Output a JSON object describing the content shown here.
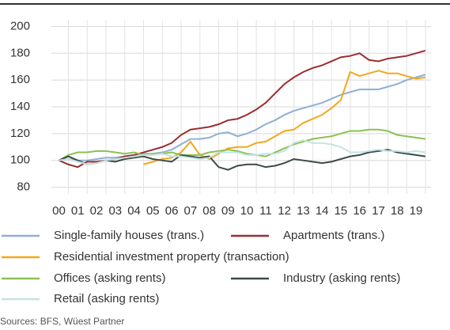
{
  "chart_data": {
    "type": "line",
    "source": "Sources: BFS, Wüest Partner",
    "x": [
      2000,
      2000.5,
      2001,
      2001.5,
      2002,
      2002.5,
      2003,
      2003.5,
      2004,
      2004.5,
      2005,
      2005.5,
      2006,
      2006.5,
      2007,
      2007.5,
      2008,
      2008.5,
      2009,
      2009.5,
      2010,
      2010.5,
      2011,
      2011.5,
      2012,
      2012.5,
      2013,
      2013.5,
      2014,
      2014.5,
      2015,
      2015.5,
      2016,
      2016.5,
      2017,
      2017.5,
      2018,
      2018.5,
      2019,
      2019.5
    ],
    "xlim": [
      1999.6,
      2019.8
    ],
    "xticks": [
      {
        "value": 2000,
        "label": "00"
      },
      {
        "value": 2001,
        "label": "01"
      },
      {
        "value": 2002,
        "label": "02"
      },
      {
        "value": 2003,
        "label": "03"
      },
      {
        "value": 2004,
        "label": "04"
      },
      {
        "value": 2005,
        "label": "05"
      },
      {
        "value": 2006,
        "label": "06"
      },
      {
        "value": 2007,
        "label": "07"
      },
      {
        "value": 2008,
        "label": "08"
      },
      {
        "value": 2009,
        "label": "09"
      },
      {
        "value": 2010,
        "label": "10"
      },
      {
        "value": 2011,
        "label": "11"
      },
      {
        "value": 2012,
        "label": "12"
      },
      {
        "value": 2013,
        "label": "13"
      },
      {
        "value": 2014,
        "label": "14"
      },
      {
        "value": 2015,
        "label": "15"
      },
      {
        "value": 2016,
        "label": "16"
      },
      {
        "value": 2017,
        "label": "17"
      },
      {
        "value": 2018,
        "label": "18"
      },
      {
        "value": 2019,
        "label": "19"
      }
    ],
    "ylim": [
      75,
      205
    ],
    "yticks": [
      80,
      100,
      120,
      140,
      160,
      180,
      200
    ],
    "grid": true,
    "series": [
      {
        "name": "Single-family houses (trans.)",
        "color": "#8fb0d3",
        "values": [
          100,
          101,
          100,
          100,
          101,
          102,
          102,
          103,
          104,
          105,
          105,
          106,
          108,
          112,
          116,
          116,
          117,
          120,
          121,
          118,
          120,
          123,
          127,
          130,
          134,
          137,
          139,
          141,
          143,
          146,
          149,
          151,
          153,
          153,
          153,
          155,
          157,
          160,
          162,
          164
        ]
      },
      {
        "name": "Apartments (trans.)",
        "color": "#9b2d30",
        "values": [
          100,
          97,
          95,
          99,
          99,
          100,
          101,
          103,
          104,
          106,
          108,
          110,
          113,
          119,
          123,
          124,
          125,
          127,
          130,
          131,
          134,
          138,
          143,
          150,
          157,
          162,
          166,
          169,
          171,
          174,
          177,
          178,
          180,
          175,
          174,
          176,
          177,
          178,
          180,
          182
        ]
      },
      {
        "name": "Residential investment property (transaction)",
        "color": "#f2a81d",
        "values": [
          null,
          null,
          null,
          null,
          null,
          null,
          null,
          null,
          null,
          97,
          99,
          101,
          102,
          106,
          114,
          104,
          101,
          105,
          109,
          110,
          110,
          113,
          114,
          118,
          122,
          123,
          128,
          131,
          134,
          139,
          145,
          166,
          163,
          165,
          167,
          165,
          165,
          163,
          161,
          162
        ]
      },
      {
        "name": "Offices (asking rents)",
        "color": "#8cc152",
        "values": [
          100,
          104,
          106,
          106,
          107,
          107,
          106,
          105,
          106,
          104,
          105,
          105,
          106,
          104,
          104,
          104,
          106,
          107,
          108,
          107,
          105,
          104,
          103,
          106,
          109,
          112,
          114,
          116,
          117,
          118,
          120,
          122,
          122,
          123,
          123,
          122,
          119,
          118,
          117,
          116
        ]
      },
      {
        "name": "Industry (asking rents)",
        "color": "#3c4a45",
        "values": [
          100,
          103,
          100,
          97,
          98,
          100,
          99,
          101,
          102,
          103,
          101,
          100,
          99,
          104,
          103,
          102,
          103,
          95,
          93,
          96,
          97,
          97,
          95,
          96,
          98,
          101,
          100,
          99,
          98,
          99,
          101,
          103,
          104,
          106,
          107,
          108,
          106,
          105,
          104,
          103
        ]
      },
      {
        "name": "Retail (asking rents)",
        "color": "#c5e3e2",
        "values": [
          100,
          101,
          99,
          97,
          98,
          100,
          101,
          102,
          103,
          104,
          104,
          105,
          103,
          103,
          102,
          101,
          102,
          106,
          106,
          106,
          104,
          104,
          105,
          105,
          107,
          113,
          115,
          113,
          113,
          112,
          110,
          106,
          106,
          107,
          108,
          107,
          107,
          106,
          107,
          106
        ]
      }
    ]
  }
}
